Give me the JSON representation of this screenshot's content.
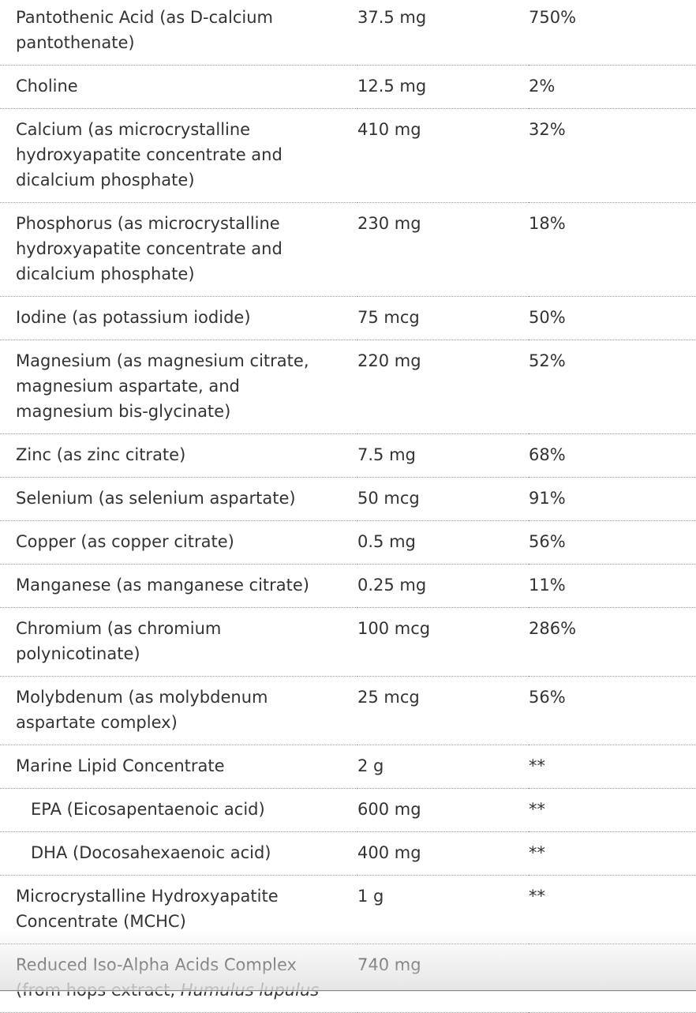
{
  "table": {
    "rows": [
      {
        "name": "Pantothenic Acid (as D-calcium pantothenate)",
        "amount": "37.5 mg",
        "dv": "750%"
      },
      {
        "name": "Choline",
        "amount": "12.5 mg",
        "dv": "2%"
      },
      {
        "name": "Calcium (as microcrystalline hydroxyapatite concentrate and dicalcium phosphate)",
        "amount": "410 mg",
        "dv": "32%"
      },
      {
        "name": "Phosphorus (as microcrystalline hydroxyapatite concentrate and dicalcium phosphate)",
        "amount": "230 mg",
        "dv": "18%"
      },
      {
        "name": "Iodine (as potassium iodide)",
        "amount": "75 mcg",
        "dv": "50%"
      },
      {
        "name": "Magnesium (as magnesium citrate, magnesium aspartate, and magnesium bis-glycinate)",
        "amount": "220 mg",
        "dv": "52%"
      },
      {
        "name": "Zinc (as zinc citrate)",
        "amount": "7.5 mg",
        "dv": "68%"
      },
      {
        "name": "Selenium (as selenium aspartate)",
        "amount": "50 mcg",
        "dv": "91%"
      },
      {
        "name": "Copper (as copper citrate)",
        "amount": "0.5 mg",
        "dv": "56%"
      },
      {
        "name": "Manganese (as manganese citrate)",
        "amount": "0.25 mg",
        "dv": "11%"
      },
      {
        "name": "Chromium (as chromium polynicotinate)",
        "amount": "100 mcg",
        "dv": "286%"
      },
      {
        "name": "Molybdenum (as molybdenum aspartate complex)",
        "amount": "25 mcg",
        "dv": "56%"
      },
      {
        "name": "Marine Lipid Concentrate",
        "amount": "2 g",
        "dv": "**"
      },
      {
        "name": "EPA (Eicosapentaenoic acid)",
        "amount": "600 mg",
        "dv": "**",
        "sub": true
      },
      {
        "name": "DHA (Docosahexaenoic acid)",
        "amount": "400 mg",
        "dv": "**",
        "sub": true
      },
      {
        "name": "Microcrystalline Hydroxyapatite Concentrate (MCHC)",
        "amount": "1 g",
        "dv": "**"
      },
      {
        "name": "Reduced Iso-Alpha Acids Complex (from hops extract,",
        "name_italic": "Humulus lupulus",
        "amount": "740 mg"
      }
    ]
  }
}
